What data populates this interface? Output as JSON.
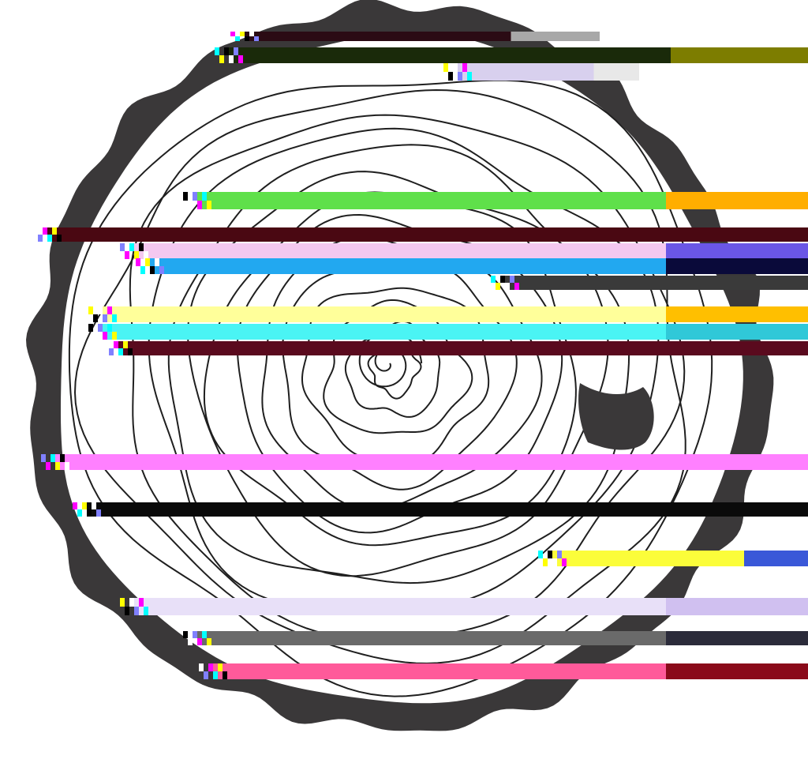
{
  "image": {
    "subject": "tree-ring-cross-section",
    "colors": {
      "background": "#ffffff",
      "bark": "#3a3839",
      "ring_line": "#1f1f1f",
      "wood": "#ffffff"
    },
    "ring_count": 14,
    "glitch_bands": [
      {
        "color": "#2b0b14",
        "accent": "#a8a8a8"
      },
      {
        "color": "#1a2a0a",
        "accent": "#7d7d00"
      },
      {
        "color": "#d8d0ee",
        "accent": "#e8e8e8"
      },
      {
        "color": "#5fe04a",
        "accent": "#ffae00"
      },
      {
        "color": "#4a0812",
        "accent": "#4a0812"
      },
      {
        "color": "#f4c8f0",
        "accent": "#6a56e6"
      },
      {
        "color": "#22a8f0",
        "accent": "#0a0a3a"
      },
      {
        "color": "#3a3a3a",
        "accent": "#3a3a3a"
      },
      {
        "color": "#ffff9a",
        "accent": "#ffbf00"
      },
      {
        "color": "#4af4f4",
        "accent": "#30c8d8"
      },
      {
        "color": "#5a0a1e",
        "accent": "#5a0a1e"
      },
      {
        "color": "#ff80ff",
        "accent": "#ff80ff"
      },
      {
        "color": "#0a0a0a",
        "accent": "#0a0a0a"
      },
      {
        "color": "#fbfd3a",
        "accent": "#3a58d8"
      },
      {
        "color": "#e8e0f8",
        "accent": "#d0c0f0"
      },
      {
        "color": "#6a6a6a",
        "accent": "#2b2b3a"
      },
      {
        "color": "#ff5a9a",
        "accent": "#8a0a1a"
      }
    ]
  }
}
